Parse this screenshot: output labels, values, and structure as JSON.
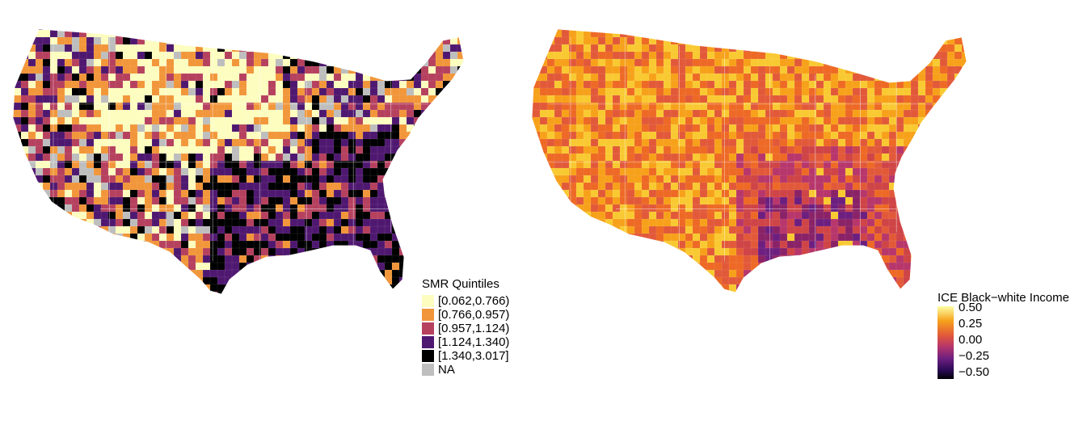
{
  "left_map": {
    "legend_title": "SMR Quintiles",
    "legend_items": [
      {
        "label": "[0.062,0.766)",
        "color": "#fcfdbf"
      },
      {
        "label": "[0.766,0.957)",
        "color": "#f1963a"
      },
      {
        "label": "[0.957,1.124)",
        "color": "#b5415f"
      },
      {
        "label": "[1.124,1.340)",
        "color": "#4f1870"
      },
      {
        "label": "[1.340,3.017]",
        "color": "#000000"
      },
      {
        "label": "NA",
        "color": "#bebebe"
      }
    ]
  },
  "right_map": {
    "legend_title": "ICE Black−white Income",
    "scale_ticks": [
      "0.50",
      "0.25",
      "0.00",
      "−0.25",
      "−0.50"
    ],
    "scale_range": [
      -0.5,
      0.5
    ],
    "palette": "inferno"
  }
}
